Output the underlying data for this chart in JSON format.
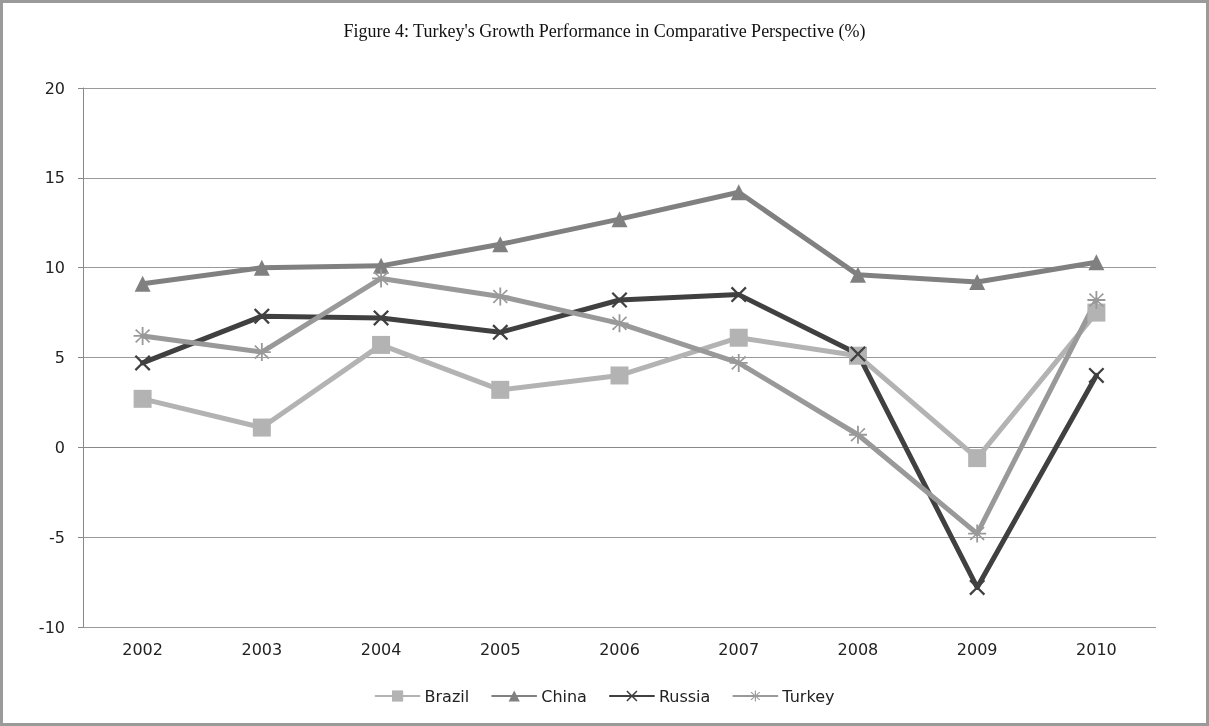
{
  "chart_data": {
    "type": "line",
    "title": "Figure 4: Turkey's Growth Performance in Comparative Perspective (%)",
    "categories": [
      "2002",
      "2003",
      "2004",
      "2005",
      "2006",
      "2007",
      "2008",
      "2009",
      "2010"
    ],
    "series": [
      {
        "name": "Brazil",
        "color": "#b3b3b3",
        "marker": "square",
        "values": [
          2.7,
          1.1,
          5.7,
          3.2,
          4.0,
          6.1,
          5.1,
          -0.6,
          7.5
        ]
      },
      {
        "name": "China",
        "color": "#808080",
        "marker": "triangle",
        "values": [
          9.1,
          10.0,
          10.1,
          11.3,
          12.7,
          14.2,
          9.6,
          9.2,
          10.3
        ]
      },
      {
        "name": "Russia",
        "color": "#404040",
        "marker": "cross",
        "values": [
          4.7,
          7.3,
          7.2,
          6.4,
          8.2,
          8.5,
          5.2,
          -7.8,
          4.0
        ]
      },
      {
        "name": "Turkey",
        "color": "#999999",
        "marker": "star",
        "values": [
          6.2,
          5.3,
          9.4,
          8.4,
          6.9,
          4.7,
          0.7,
          -4.8,
          8.2
        ]
      }
    ],
    "ylim": [
      -10,
      20
    ],
    "yticks": [
      -10,
      -5,
      0,
      5,
      10,
      15,
      20
    ],
    "grid": "y",
    "legend": "bottom",
    "line_style": "solid"
  }
}
